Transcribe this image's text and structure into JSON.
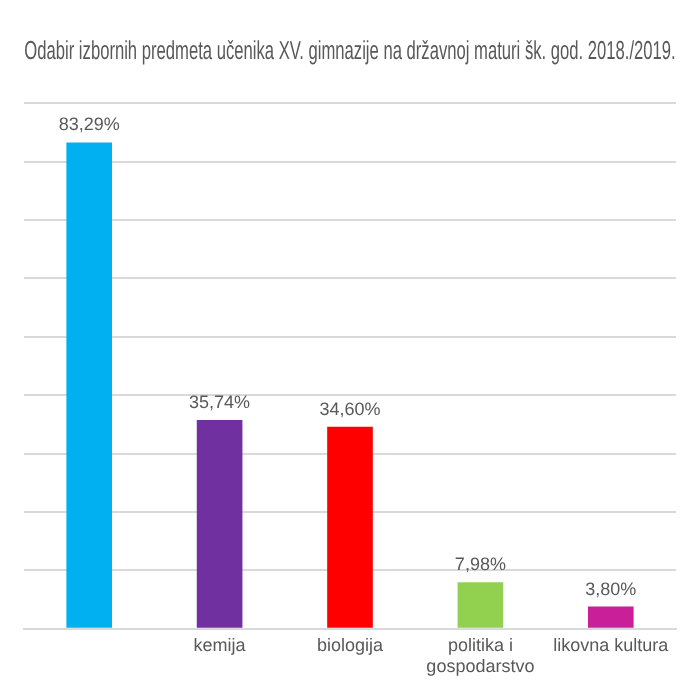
{
  "chart_data": {
    "type": "bar",
    "title": "Odabir izbornih predmeta učenika XV. gimnazije na državnoj maturi šk. god. 2018./2019.",
    "categories": [
      null,
      "kemija",
      "biologija",
      "politika i gospodarstvo",
      "likovna kultura"
    ],
    "values": [
      83.29,
      35.74,
      34.6,
      7.98,
      3.8
    ],
    "value_labels": [
      "83,29%",
      "35,74%",
      "34,60%",
      "7,98%",
      "3,80%"
    ],
    "colors": [
      "#00b0f0",
      "#7030a0",
      "#ff0000",
      "#92d050",
      "#c9209a"
    ],
    "ylim": [
      0,
      90
    ],
    "yticks": [
      {
        "value": 0,
        "label": null
      },
      {
        "value": 10,
        "label": null
      },
      {
        "value": 20,
        "label": null
      },
      {
        "value": 30,
        "label": null
      },
      {
        "value": 40,
        "label": null
      },
      {
        "value": 50,
        "label": null
      },
      {
        "value": 60,
        "label": null
      },
      {
        "value": 70,
        "label": null
      },
      {
        "value": 80,
        "label": null
      },
      {
        "value": 90,
        "label": null
      }
    ],
    "grid": "y",
    "tick_labels": "x",
    "legend": false
  }
}
